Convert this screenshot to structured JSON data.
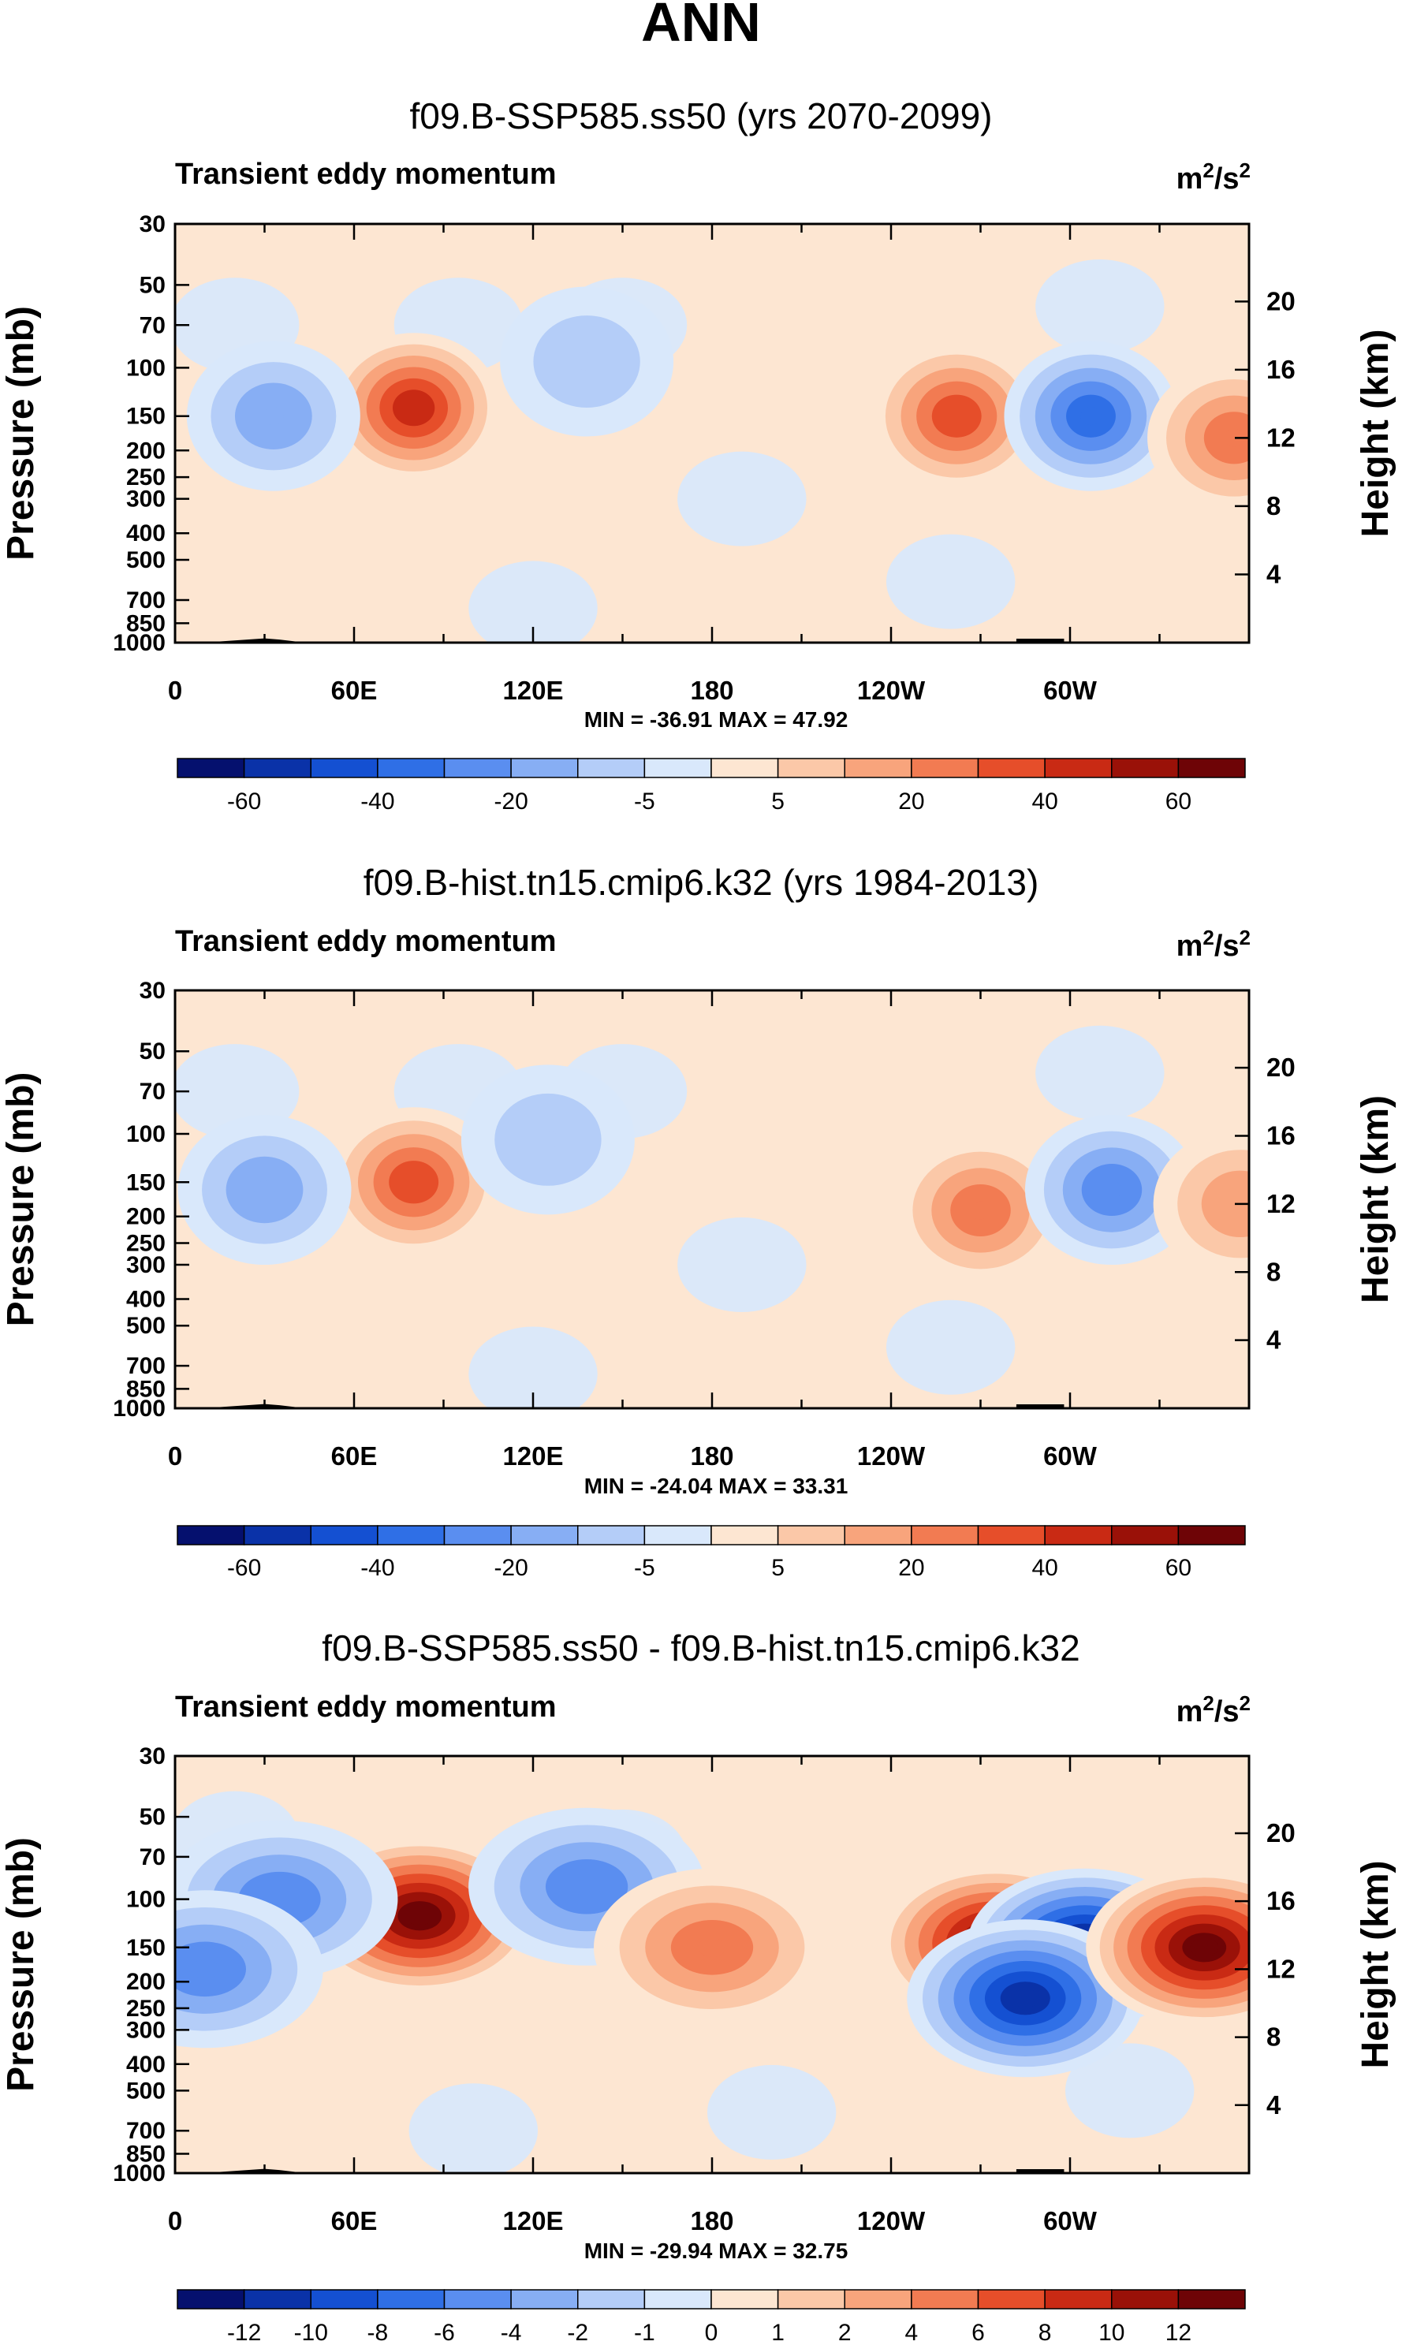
{
  "figure": {
    "season": "ANN"
  },
  "chart_data": [
    {
      "type": "heatmap",
      "title": "f09.B-SSP585.ss50 (yrs 2070-2099)",
      "subtitle": "Transient eddy momentum",
      "units": "m²/s²",
      "units_base": "m",
      "units_sup1": "2",
      "units_mid": "/s",
      "units_sup2": "2",
      "ylabel_left": "Pressure (mb)",
      "ylabel_right": "Height (km)",
      "x_ticks": [
        "0",
        "60E",
        "120E",
        "180",
        "120W",
        "60W"
      ],
      "p_ticks": [
        30,
        50,
        70,
        100,
        150,
        200,
        250,
        300,
        400,
        500,
        700,
        850,
        1000
      ],
      "p_tick_labels": [
        "30",
        "50",
        "70",
        "100",
        "150",
        "200",
        "250",
        "300",
        "400",
        "500",
        "700",
        "850",
        "1000"
      ],
      "height_ticks": [
        "20",
        "16",
        "12",
        "8",
        "4"
      ],
      "stats": "MIN = -36.91  MAX = 47.92",
      "colorbar_labels": [
        "-60",
        "-40",
        "-20",
        "-5",
        "5",
        "20",
        "40",
        "60"
      ],
      "features": [
        {
          "lon": 80,
          "p": 140,
          "value": 47.92
        },
        {
          "lon": 33,
          "p": 150,
          "value": -15
        },
        {
          "lon": 138,
          "p": 95,
          "value": -8
        },
        {
          "lon": 262,
          "p": 150,
          "value": 30
        },
        {
          "lon": 307,
          "p": 150,
          "value": -36.91
        },
        {
          "lon": 355,
          "p": 180,
          "value": 22
        }
      ]
    },
    {
      "type": "heatmap",
      "title": "f09.B-hist.tn15.cmip6.k32 (yrs 1984-2013)",
      "subtitle": "Transient eddy momentum",
      "units": "m²/s²",
      "units_base": "m",
      "units_sup1": "2",
      "units_mid": "/s",
      "units_sup2": "2",
      "ylabel_left": "Pressure (mb)",
      "ylabel_right": "Height (km)",
      "x_ticks": [
        "0",
        "60E",
        "120E",
        "180",
        "120W",
        "60W"
      ],
      "p_ticks": [
        30,
        50,
        70,
        100,
        150,
        200,
        250,
        300,
        400,
        500,
        700,
        850,
        1000
      ],
      "p_tick_labels": [
        "30",
        "50",
        "70",
        "100",
        "150",
        "200",
        "250",
        "300",
        "400",
        "500",
        "700",
        "850",
        "1000"
      ],
      "height_ticks": [
        "20",
        "16",
        "12",
        "8",
        "4"
      ],
      "stats": "MIN = -24.04  MAX = 33.31",
      "colorbar_labels": [
        "-60",
        "-40",
        "-20",
        "-5",
        "5",
        "20",
        "40",
        "60"
      ],
      "features": [
        {
          "lon": 80,
          "p": 150,
          "value": 33.31
        },
        {
          "lon": 30,
          "p": 160,
          "value": -14
        },
        {
          "lon": 125,
          "p": 105,
          "value": -7
        },
        {
          "lon": 270,
          "p": 190,
          "value": 26
        },
        {
          "lon": 314,
          "p": 160,
          "value": -24.04
        },
        {
          "lon": 357,
          "p": 180,
          "value": 15
        }
      ]
    },
    {
      "type": "heatmap",
      "title": "f09.B-SSP585.ss50 - f09.B-hist.tn15.cmip6.k32",
      "subtitle": "Transient eddy momentum",
      "units": "m²/s²",
      "units_base": "m",
      "units_sup1": "2",
      "units_mid": "/s",
      "units_sup2": "2",
      "ylabel_left": "Pressure (mb)",
      "ylabel_right": "Height (km)",
      "x_ticks": [
        "0",
        "60E",
        "120E",
        "180",
        "120W",
        "60W"
      ],
      "p_ticks": [
        30,
        50,
        70,
        100,
        150,
        200,
        250,
        300,
        400,
        500,
        700,
        850,
        1000
      ],
      "p_tick_labels": [
        "30",
        "50",
        "70",
        "100",
        "150",
        "200",
        "250",
        "300",
        "400",
        "500",
        "700",
        "850",
        "1000"
      ],
      "height_ticks": [
        "20",
        "16",
        "12",
        "8",
        "4"
      ],
      "stats": "MIN = -29.94  MAX = 32.75",
      "colorbar_labels": [
        "-12",
        "-10",
        "-8",
        "-6",
        "-4",
        "-2",
        "-1",
        "0",
        "1",
        "2",
        "4",
        "6",
        "8",
        "10",
        "12"
      ],
      "features": [
        {
          "lon": 82,
          "p": 115,
          "value": 32.75
        },
        {
          "lon": 275,
          "p": 145,
          "value": 12
        },
        {
          "lon": 305,
          "p": 150,
          "value": -29.94
        },
        {
          "lon": 285,
          "p": 230,
          "value": -10
        },
        {
          "lon": 345,
          "p": 150,
          "value": 14
        },
        {
          "lon": 138,
          "p": 90,
          "value": -5
        },
        {
          "lon": 35,
          "p": 100,
          "value": -5
        },
        {
          "lon": 180,
          "p": 150,
          "value": 4
        },
        {
          "lon": 10,
          "p": 180,
          "value": -4
        }
      ]
    }
  ],
  "colors": {
    "scale": [
      "#05106e",
      "#0a32a8",
      "#1450d2",
      "#2f6fe6",
      "#5a8ef0",
      "#87aef4",
      "#b4cdf8",
      "#d9e8fb",
      "#fde6d2",
      "#fbc8a8",
      "#f8a47c",
      "#f27b52",
      "#e64e2a",
      "#c92a14",
      "#9a1108",
      "#6e0406"
    ],
    "neutral_pos": "#fde6d2",
    "neutral_neg": "#d9e8fb",
    "topography": "#000000"
  }
}
